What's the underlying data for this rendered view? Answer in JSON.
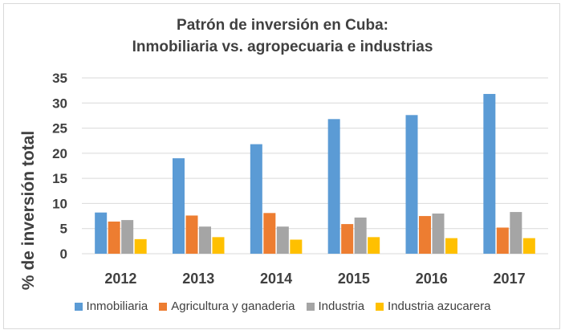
{
  "chart_data": {
    "type": "bar",
    "title_line1": "Patrón de inversión en Cuba:",
    "title_line2": "Inmobiliaria vs. agropecuaria e industrias",
    "xlabel": "",
    "ylabel": "% de inversión total",
    "ylim": [
      0,
      35
    ],
    "yticks": [
      0,
      5,
      10,
      15,
      20,
      25,
      30,
      35
    ],
    "grid": true,
    "legend_position": "bottom",
    "categories": [
      "2012",
      "2013",
      "2014",
      "2015",
      "2016",
      "2017"
    ],
    "series": [
      {
        "name": "Inmobiliaria",
        "color": "#5b9bd5",
        "values": [
          8.2,
          19.0,
          21.8,
          26.8,
          27.6,
          31.8
        ]
      },
      {
        "name": "Agricultura y ganaderia",
        "color": "#ed7d31",
        "values": [
          6.4,
          7.6,
          8.1,
          5.9,
          7.5,
          5.2
        ]
      },
      {
        "name": "Industria",
        "color": "#a5a5a5",
        "values": [
          6.7,
          5.4,
          5.4,
          7.2,
          8.0,
          8.3
        ]
      },
      {
        "name": "Industria azucarera",
        "color": "#ffc000",
        "values": [
          2.9,
          3.3,
          2.8,
          3.3,
          3.1,
          3.1
        ]
      }
    ]
  }
}
